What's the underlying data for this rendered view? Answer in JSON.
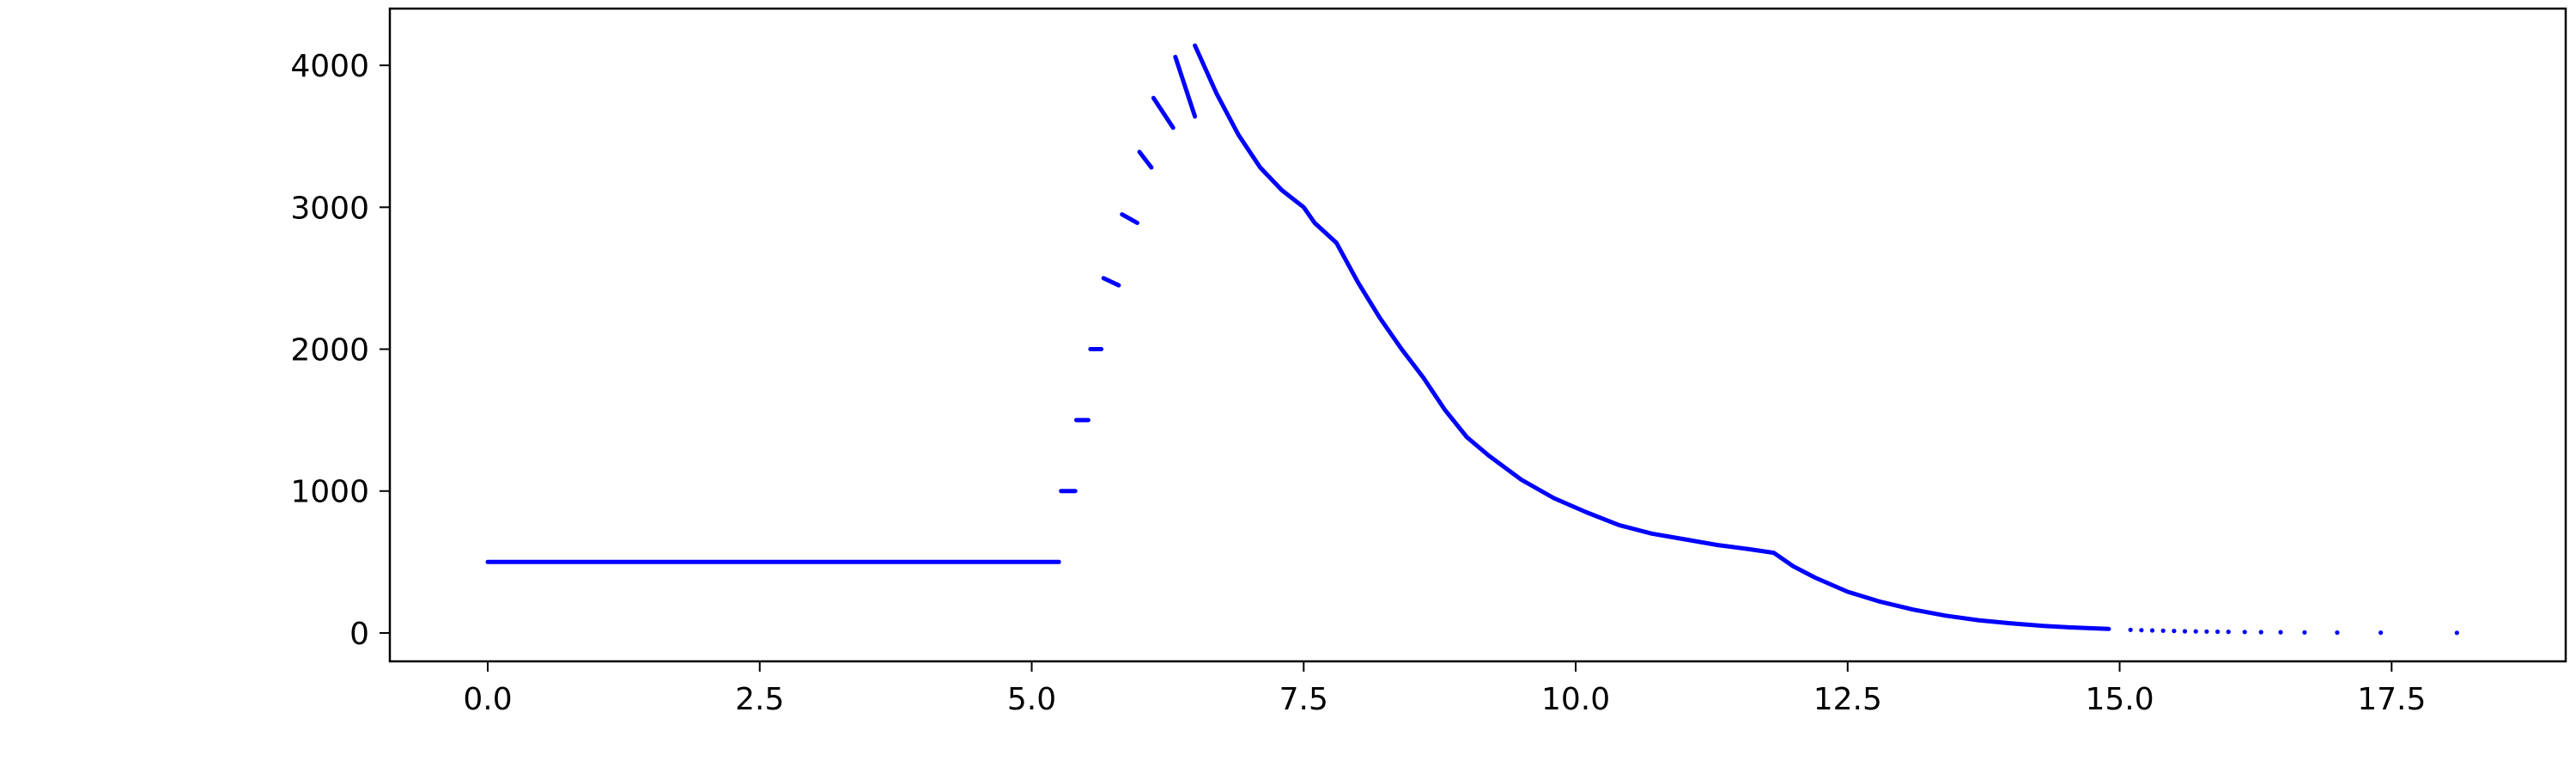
{
  "chart_data": {
    "type": "scatter",
    "title": "",
    "xlabel": "",
    "ylabel": "",
    "xlim": [
      -0.9,
      19.1
    ],
    "ylim": [
      -200,
      4400
    ],
    "grid": false,
    "marker_color": "#0000ff",
    "xticks": [
      0.0,
      2.5,
      5.0,
      7.5,
      10.0,
      12.5,
      15.0,
      17.5
    ],
    "xtick_labels": [
      "0.0",
      "2.5",
      "5.0",
      "7.5",
      "10.0",
      "12.5",
      "15.0",
      "17.5"
    ],
    "yticks": [
      0,
      1000,
      2000,
      3000,
      4000
    ],
    "ytick_labels": [
      "0",
      "1000",
      "2000",
      "3000",
      "4000"
    ],
    "series": [
      {
        "segments": [
          {
            "x": [
              0.0,
              1.0,
              2.0,
              3.0,
              4.0,
              5.0,
              5.25
            ],
            "y": [
              500,
              500,
              500,
              500,
              500,
              500,
              500
            ]
          },
          {
            "x": [
              5.27,
              5.4
            ],
            "y": [
              1000,
              1000
            ]
          },
          {
            "x": [
              5.41,
              5.52
            ],
            "y": [
              1500,
              1500
            ]
          },
          {
            "x": [
              5.54,
              5.64
            ],
            "y": [
              2000,
              2000
            ]
          },
          {
            "x": [
              5.66,
              5.8
            ],
            "y": [
              2500,
              2450
            ]
          },
          {
            "x": [
              5.83,
              5.97
            ],
            "y": [
              2950,
              2890
            ]
          },
          {
            "x": [
              5.99,
              6.1
            ],
            "y": [
              3390,
              3280
            ]
          },
          {
            "x": [
              6.12,
              6.3
            ],
            "y": [
              3770,
              3560
            ]
          },
          {
            "x": [
              6.32,
              6.5
            ],
            "y": [
              4060,
              3640
            ]
          },
          {
            "x": [
              6.5,
              6.7,
              6.9,
              7.1,
              7.3,
              7.5,
              7.6,
              7.8,
              8.0,
              8.2,
              8.4,
              8.6,
              8.8,
              9.0,
              9.2,
              9.5,
              9.8,
              10.1,
              10.4,
              10.7,
              11.0,
              11.3,
              11.6,
              11.82,
              12.0,
              12.2,
              12.5,
              12.8,
              13.1,
              13.4,
              13.7,
              14.0,
              14.3,
              14.6,
              14.9
            ],
            "y": [
              4140,
              3800,
              3510,
              3280,
              3120,
              3000,
              2890,
              2750,
              2470,
              2220,
              2000,
              1800,
              1570,
              1380,
              1250,
              1080,
              950,
              850,
              760,
              700,
              660,
              620,
              590,
              565,
              470,
              390,
              290,
              220,
              165,
              122,
              90,
              68,
              50,
              37,
              28
            ]
          }
        ],
        "points": {
          "x": [
            15.1,
            15.2,
            15.3,
            15.4,
            15.5,
            15.6,
            15.7,
            15.8,
            15.9,
            16.0,
            16.15,
            16.3,
            16.48,
            16.7,
            17.0,
            17.4,
            18.1
          ],
          "y": [
            22,
            20,
            18,
            16,
            14,
            12,
            11,
            10,
            9,
            8,
            7,
            6,
            5,
            4,
            3,
            2,
            1
          ]
        }
      }
    ]
  }
}
